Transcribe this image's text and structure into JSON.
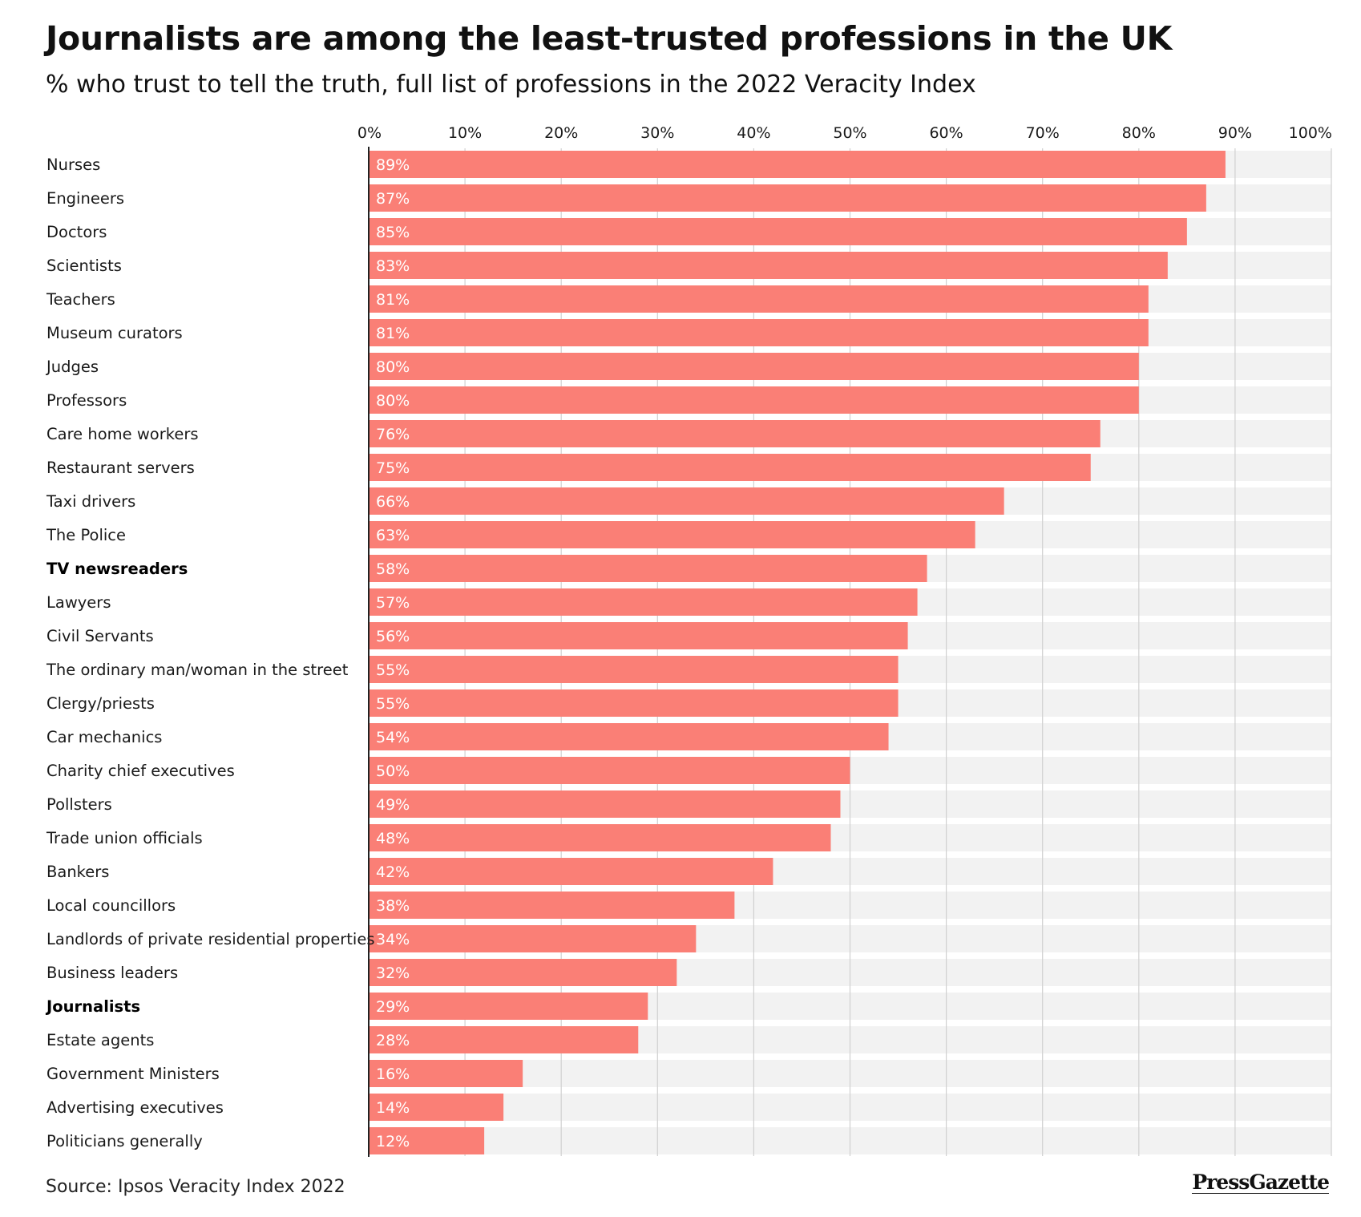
{
  "chart_data": {
    "type": "bar",
    "orientation": "horizontal",
    "title": "Journalists are among the least-trusted professions in the UK",
    "subtitle": "% who trust to tell the truth, full list of professions in the 2022 Veracity Index",
    "xlim": [
      0,
      100
    ],
    "ticks": [
      0,
      10,
      20,
      30,
      40,
      50,
      60,
      70,
      80,
      90,
      100
    ],
    "tick_labels": [
      "0%",
      "10%",
      "20%",
      "30%",
      "40%",
      "50%",
      "60%",
      "70%",
      "80%",
      "90%",
      "100%"
    ],
    "categories": [
      "Nurses",
      "Engineers",
      "Doctors",
      "Scientists",
      "Teachers",
      "Museum curators",
      "Judges",
      "Professors",
      "Care home workers",
      "Restaurant servers",
      "Taxi drivers",
      "The Police",
      "TV newsreaders",
      "Lawyers",
      "Civil Servants",
      "The ordinary man/woman in the street",
      "Clergy/priests",
      "Car mechanics",
      "Charity chief executives",
      "Pollsters",
      "Trade union officials",
      "Bankers",
      "Local councillors",
      "Landlords of private residential properties",
      "Business leaders",
      "Journalists",
      "Estate agents",
      "Government Ministers",
      "Advertising executives",
      "Politicians generally"
    ],
    "values": [
      89,
      87,
      85,
      83,
      81,
      81,
      80,
      80,
      76,
      75,
      66,
      63,
      58,
      57,
      56,
      55,
      55,
      54,
      50,
      49,
      48,
      42,
      38,
      34,
      32,
      29,
      28,
      16,
      14,
      12
    ],
    "value_labels": [
      "89%",
      "87%",
      "85%",
      "83%",
      "81%",
      "81%",
      "80%",
      "80%",
      "76%",
      "75%",
      "66%",
      "63%",
      "58%",
      "57%",
      "56%",
      "55%",
      "55%",
      "54%",
      "50%",
      "49%",
      "48%",
      "42%",
      "38%",
      "34%",
      "32%",
      "29%",
      "28%",
      "16%",
      "14%",
      "12%"
    ],
    "highlighted": [
      "TV newsreaders",
      "Journalists"
    ],
    "colors": {
      "bar": "#fa7f76",
      "track": "#f2f2f2",
      "grid": "#d0d0d0",
      "axis": "#222222"
    }
  },
  "source": "Source: Ipsos Veracity Index 2022",
  "brand": "PressGazette"
}
